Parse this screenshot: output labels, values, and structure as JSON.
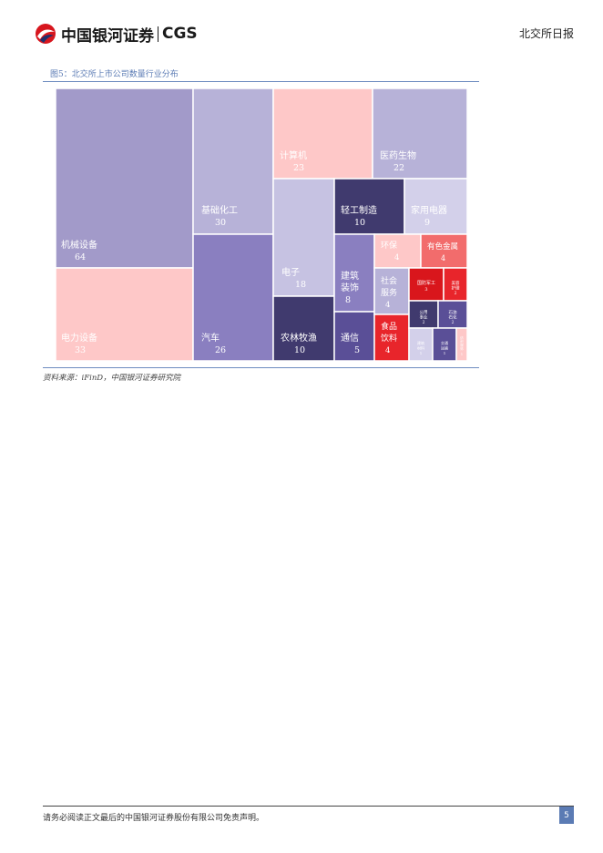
{
  "header": {
    "logo_cn": "中国银河证券",
    "logo_en": "CGS",
    "report_name": "北交所日报"
  },
  "figure": {
    "caption": "图5：北交所上市公司数量行业分布",
    "source": "资料来源：iFinD，中国银河证券研究院"
  },
  "chart_data": {
    "type": "treemap",
    "items": [
      {
        "name": "机械设备",
        "value": 64,
        "color": "#a29ac9",
        "text_color": "#ffffff"
      },
      {
        "name": "电力设备",
        "value": 33,
        "color": "#fec8c8",
        "text_color": "#ffffff"
      },
      {
        "name": "基础化工",
        "value": 30,
        "color": "#b7b2d8",
        "text_color": "#ffffff"
      },
      {
        "name": "汽车",
        "value": 26,
        "color": "#8a7fc0",
        "text_color": "#ffffff"
      },
      {
        "name": "计算机",
        "value": 23,
        "color": "#fec8c8",
        "text_color": "#ffffff"
      },
      {
        "name": "医药生物",
        "value": 22,
        "color": "#b7b2d8",
        "text_color": "#ffffff"
      },
      {
        "name": "电子",
        "value": 18,
        "color": "#c6c2e2",
        "text_color": "#ffffff"
      },
      {
        "name": "农林牧渔",
        "value": 10,
        "color": "#403a6e",
        "text_color": "#ffffff"
      },
      {
        "name": "轻工制造",
        "value": 10,
        "color": "#403a6e",
        "text_color": "#ffffff"
      },
      {
        "name": "家用电器",
        "value": 9,
        "color": "#d3d0ea",
        "text_color": "#ffffff"
      },
      {
        "name": "建筑装饰",
        "value": 8,
        "color": "#8a7fc0",
        "text_color": "#ffffff"
      },
      {
        "name": "通信",
        "value": 5,
        "color": "#5a4f97",
        "text_color": "#ffffff"
      },
      {
        "name": "环保",
        "value": 4,
        "color": "#fec8c8",
        "text_color": "#ffffff"
      },
      {
        "name": "有色金属",
        "value": 4,
        "color": "#f26c6c",
        "text_color": "#ffffff"
      },
      {
        "name": "社会服务",
        "value": 4,
        "color": "#b7b2d8",
        "text_color": "#ffffff"
      },
      {
        "name": "食品饮料",
        "value": 4,
        "color": "#e8252b",
        "text_color": "#ffffff"
      },
      {
        "name": "国防军工",
        "value": 3,
        "color": "#d9161c",
        "text_color": "#ffffff"
      },
      {
        "name": "美容护理",
        "value": 2,
        "color": "#e8252b",
        "text_color": "#ffffff"
      },
      {
        "name": "公用事业",
        "value": 2,
        "color": "#403a6e",
        "text_color": "#ffffff"
      },
      {
        "name": "石油石化",
        "value": 2,
        "color": "#5a4f97",
        "text_color": "#ffffff"
      },
      {
        "name": "建筑材料",
        "value": 1,
        "color": "#d3d0ea",
        "text_color": "#ffffff"
      },
      {
        "name": "交通运输",
        "value": 1,
        "color": "#5a4f97",
        "text_color": "#ffffff"
      },
      {
        "name": "纺织服饰",
        "value": 1,
        "color": "#fec8c8",
        "text_color": "#ffffff"
      }
    ]
  },
  "footer": {
    "disclaimer": "请务必阅读正文最后的中国银河证券股份有限公司免责声明。",
    "page_number": "5"
  }
}
